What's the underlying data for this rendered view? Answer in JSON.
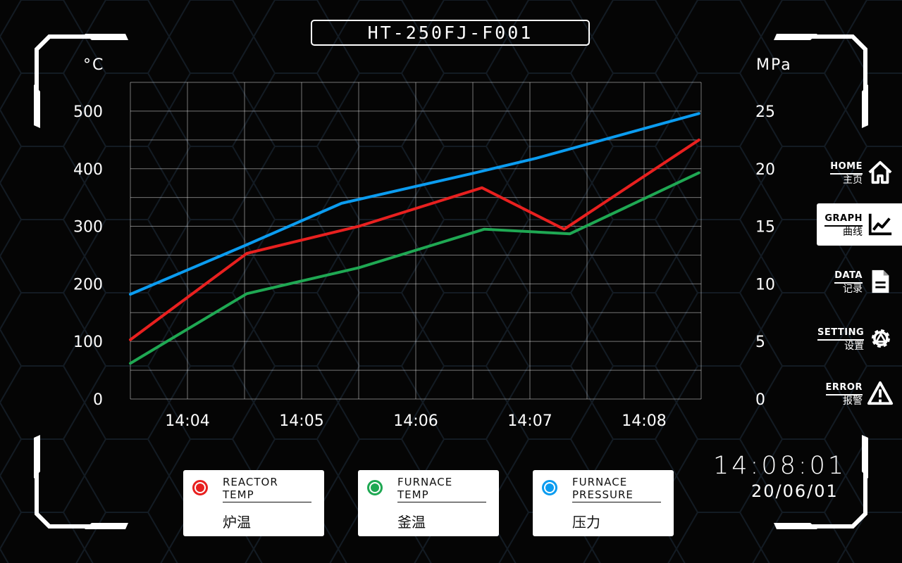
{
  "header": {
    "title": "HT-250FJ-F001"
  },
  "axes": {
    "left_unit": "°C",
    "right_unit": "MPa"
  },
  "chart_data": {
    "type": "line",
    "x": [
      "14:03:30",
      "14:04:30",
      "14:05:30",
      "14:06:36",
      "14:07:18",
      "14:08:30"
    ],
    "xticks": [
      "14:04",
      "14:05",
      "14:06",
      "14:07",
      "14:08"
    ],
    "ylim_left": [
      0,
      500
    ],
    "ylim_right": [
      0,
      25
    ],
    "yticks_left": [
      "0",
      "100",
      "200",
      "300",
      "400",
      "500"
    ],
    "yticks_right": [
      "0",
      "5",
      "10",
      "15",
      "20",
      "25"
    ],
    "grid": true,
    "series": [
      {
        "name": "REACTOR TEMP",
        "axis": "left",
        "color": "#e8201f",
        "points": [
          [
            0,
            103
          ],
          [
            1.02,
            253
          ],
          [
            2.0,
            300
          ],
          [
            3.08,
            367
          ],
          [
            3.8,
            295
          ],
          [
            4.98,
            450
          ]
        ]
      },
      {
        "name": "FURNACE TEMP",
        "axis": "left",
        "color": "#1fa853",
        "points": [
          [
            0,
            62
          ],
          [
            1.02,
            183
          ],
          [
            2.0,
            228
          ],
          [
            3.1,
            295
          ],
          [
            3.85,
            287
          ],
          [
            4.98,
            393
          ]
        ]
      },
      {
        "name": "FURNACE PRESSURE",
        "axis": "right",
        "color": "#0b9cf0",
        "points": [
          [
            0,
            9.1
          ],
          [
            1.02,
            13.4
          ],
          [
            1.85,
            17.0
          ],
          [
            3.0,
            19.6
          ],
          [
            3.55,
            20.9
          ],
          [
            4.98,
            24.8
          ]
        ]
      }
    ]
  },
  "nav": [
    {
      "en": "HOME",
      "cn": "主页",
      "icon": "home-icon"
    },
    {
      "en": "GRAPH",
      "cn": "曲线",
      "icon": "graph-icon",
      "active": true
    },
    {
      "en": "DATA",
      "cn": "记录",
      "icon": "document-icon"
    },
    {
      "en": "SETTING",
      "cn": "设置",
      "icon": "gear-icon"
    },
    {
      "en": "ERROR",
      "cn": "报警",
      "icon": "warning-icon"
    }
  ],
  "legend": [
    {
      "en1": "REACTOR",
      "en2": "TEMP",
      "cn": "炉温",
      "color": "#e8201f"
    },
    {
      "en1": "FURNACE",
      "en2": "TEMP",
      "cn": "釜温",
      "color": "#1fa853"
    },
    {
      "en1": "FURNACE",
      "en2": "PRESSURE",
      "cn": "压力",
      "color": "#0b9cf0"
    }
  ],
  "status": {
    "time": "14:08:01",
    "date": "20/06/01"
  }
}
